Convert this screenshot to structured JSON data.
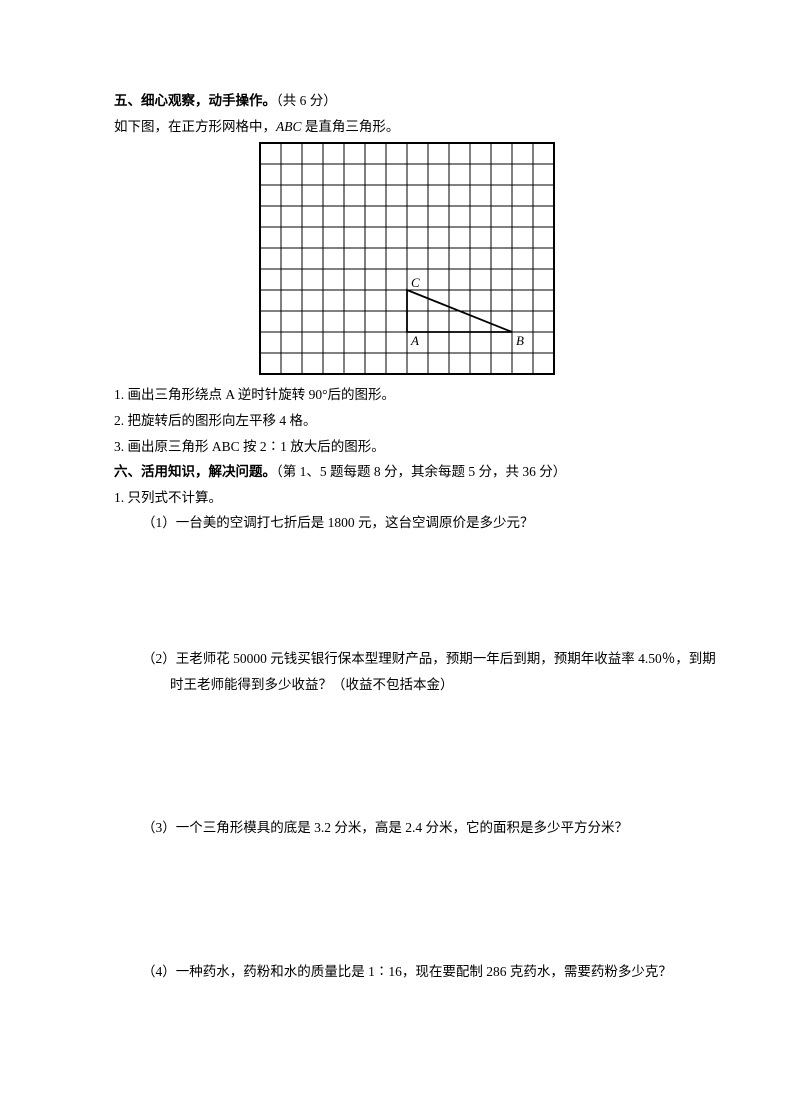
{
  "section5": {
    "heading_bold": "五、细心观察，动手操作。",
    "heading_tail": "（共 6 分）",
    "intro_pre": "如下图，在正方形网格中，",
    "intro_ital": "ABC",
    "intro_post": " 是直角三角形。",
    "grid": {
      "cols": 14,
      "rows": 11,
      "cell": 21,
      "stroke": "#000000",
      "outer_stroke_w": 2,
      "inner_stroke_w": 1,
      "triangle": {
        "A": [
          7,
          9
        ],
        "B": [
          12,
          9
        ],
        "C": [
          7,
          7
        ],
        "labelA": "A",
        "labelB": "B",
        "labelC": "C",
        "stroke_w": 1.8
      }
    },
    "items": [
      "1. 画出三角形绕点 A 逆时针旋转 90°后的图形。",
      "2. 把旋转后的图形向左平移 4 格。",
      "3. 画出原三角形 ABC 按 2∶1 放大后的图形。"
    ]
  },
  "section6": {
    "heading_bold": "六、活用知识，解决问题。",
    "heading_tail": "（第 1、5 题每题 8 分，其余每题 5 分，共 36 分）",
    "q1_head": "1. 只列式不计算。",
    "q1_1": "（1）一台美的空调打七折后是 1800 元，这台空调原价是多少元？",
    "q1_2a": "（2）王老师花 50000 元钱买银行保本型理财产品，预期一年后到期，预期年收益率 4.50％，到期",
    "q1_2b": "时王老师能得到多少收益？（收益不包括本金）",
    "q1_3": "（3）一个三角形模具的底是 3.2 分米，高是 2.4 分米，它的面积是多少平方分米？",
    "q1_4": "（4）一种药水，药粉和水的质量比是 1∶16，现在要配制 286 克药水，需要药粉多少克？"
  }
}
